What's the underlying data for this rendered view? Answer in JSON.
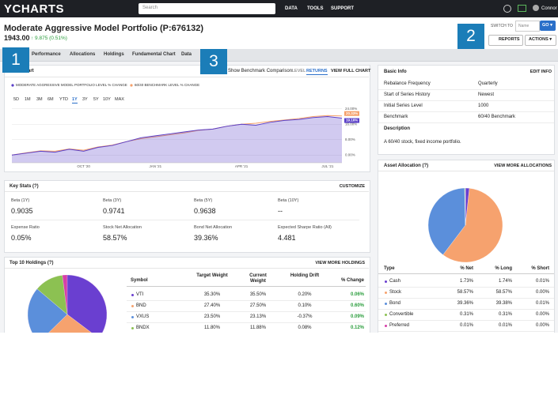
{
  "nav": {
    "logo": "YCHARTS",
    "search": "Search",
    "links": [
      "DATA",
      "TOOLS",
      "SUPPORT"
    ],
    "user": "Connor"
  },
  "header": {
    "title": "Moderate Aggressive Model Portfolio (P:676132)",
    "price": "1943.00",
    "change": "↑ 9.875 (0.51%)",
    "switch_to": "SWITCH TO",
    "name_field": "Name",
    "go": "GO ▾",
    "reports": "REPORTS",
    "actions": "ACTIONS ▾"
  },
  "tabs": [
    "Performance",
    "Allocations",
    "Holdings",
    "Fundamental Chart",
    "Data"
  ],
  "badges": [
    "1",
    "2",
    "3"
  ],
  "level_chart_panel": {
    "title": "Level Chart",
    "benchmark_toggle": "Show Benchmark Comparison",
    "modes": [
      "LEVEL",
      "RETURNS"
    ],
    "view_full": "VIEW FULL CHART",
    "ranges": [
      "5D",
      "1M",
      "3M",
      "6M",
      "YTD",
      "1Y",
      "3Y",
      "5Y",
      "10Y",
      "MAX"
    ]
  },
  "chart_data": {
    "type": "line",
    "categories": [
      null,
      null,
      null,
      null,
      null,
      "OCT '20",
      null,
      null,
      null,
      null,
      "JAN '21",
      null,
      null,
      null,
      null,
      null,
      "APR '21",
      null,
      null,
      null,
      null,
      null,
      "JUL '21",
      null
    ],
    "series": [
      {
        "name": "MODERATE AGGRESSIVE MODEL PORTFOLIO LEVEL % CHANGE",
        "color": "#5a3fc8",
        "values": [
          0,
          1,
          2,
          1.5,
          3,
          2,
          4,
          5,
          7,
          9,
          10,
          11,
          12,
          13,
          13.5,
          15,
          16,
          15.5,
          17,
          18,
          18.5,
          19.5,
          20,
          19.16
        ],
        "end_label": "19.16%"
      },
      {
        "name": "60/40 BENCHMARK LEVEL % CHANGE",
        "color": "#f5a06a",
        "values": [
          0,
          1.2,
          2.2,
          2,
          3.2,
          2.5,
          4.2,
          5.2,
          7,
          8.5,
          9.5,
          10.5,
          11.5,
          12.8,
          13.5,
          15,
          16,
          16.5,
          17.5,
          18.2,
          19,
          20,
          20.5,
          20.33
        ],
        "end_label": "20.33%"
      }
    ],
    "ylim": [
      -4,
      28
    ],
    "yticks": [
      {
        "value": 0,
        "label": "0.00%"
      },
      {
        "value": 8,
        "label": "8.00%"
      },
      {
        "value": 16,
        "label": "16.00%"
      },
      {
        "value": 24,
        "label": "24.00%"
      }
    ],
    "grid": true
  },
  "basic_info": {
    "title": "Basic Info",
    "edit": "EDIT INFO",
    "rows": [
      [
        "Rebalance Frequency",
        "Quarterly"
      ],
      [
        "Start of Series History",
        "Newest"
      ],
      [
        "Initial Series Level",
        "1000"
      ],
      [
        "Benchmark",
        "60/40 Benchmark"
      ]
    ],
    "description_label": "Description",
    "description": "A 60/40 stock, fixed income portfolio."
  },
  "key_stats": {
    "title": "Key Stats (?)",
    "customize": "CUSTOMIZE",
    "stats": [
      [
        "Beta (1Y)",
        "0.9035"
      ],
      [
        "Beta (3Y)",
        "0.9741"
      ],
      [
        "Beta (5Y)",
        "0.9638"
      ],
      [
        "Beta (10Y)",
        "--"
      ],
      [
        "Expense Ratio",
        "0.05%"
      ],
      [
        "Stock Net Allocation",
        "58.57%"
      ],
      [
        "Bond Net Allocation",
        "39.36%"
      ],
      [
        "Expected Sharpe Ratio (All)",
        "4.481"
      ]
    ]
  },
  "holdings": {
    "title": "Top 10 Holdings (?)",
    "view_more": "VIEW MORE HOLDINGS",
    "columns": [
      "Symbol",
      "Target Weight",
      "Current Weight",
      "Holding Drift",
      "% Change"
    ],
    "rows": [
      [
        "VTI",
        "35.30%",
        "35.50%",
        "0.20%",
        "0.06%"
      ],
      [
        "BND",
        "27.40%",
        "27.50%",
        "0.10%",
        "0.60%"
      ],
      [
        "VXUS",
        "23.50%",
        "23.13%",
        "-0.37%",
        "0.09%"
      ],
      [
        "BNDX",
        "11.80%",
        "11.88%",
        "0.08%",
        "0.12%"
      ]
    ],
    "colors": [
      "#6a3fd0",
      "#f6a26e",
      "#5b8fdb",
      "#8cc152"
    ]
  },
  "asset_allocation": {
    "title": "Asset Allocation (?)",
    "view_more": "VIEW MORE ALLOCATIONS",
    "columns": [
      "Type",
      "% Net",
      "% Long",
      "% Short"
    ],
    "rows": [
      [
        "Cash",
        "1.73%",
        "1.74%",
        "0.01%"
      ],
      [
        "Stock",
        "58.57%",
        "58.57%",
        "0.00%"
      ],
      [
        "Bond",
        "39.36%",
        "39.38%",
        "0.01%"
      ],
      [
        "Convertible",
        "0.31%",
        "0.31%",
        "0.00%"
      ],
      [
        "Preferred",
        "0.01%",
        "0.01%",
        "0.00%"
      ]
    ],
    "colors": [
      "#6a3fd0",
      "#f6a26e",
      "#5b8fdb",
      "#8cc152",
      "#d63fa8"
    ]
  }
}
